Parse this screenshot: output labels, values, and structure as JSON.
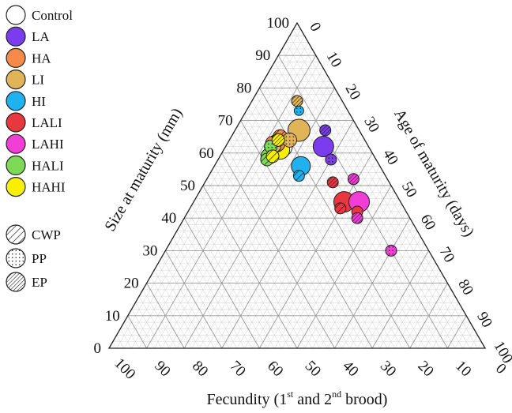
{
  "chart_data": {
    "type": "scatter",
    "subtype": "ternary",
    "axes": {
      "left": {
        "label": "Size at maturity (mm)",
        "ticks": [
          "0",
          "10",
          "20",
          "30",
          "40",
          "50",
          "60",
          "70",
          "80",
          "90",
          "100"
        ]
      },
      "right": {
        "label": "Age of maturity (days)",
        "ticks": [
          "0",
          "10",
          "20",
          "30",
          "40",
          "50",
          "60",
          "70",
          "80",
          "90",
          "100"
        ]
      },
      "bottom": {
        "label_main": "Fecundity (1",
        "label_sup1": "st",
        "label_mid": " and 2",
        "label_sup2": "nd",
        "label_end": " brood)",
        "ticks": [
          "100",
          "90",
          "80",
          "70",
          "60",
          "50",
          "40",
          "30",
          "20",
          "10",
          "0"
        ]
      },
      "range": [
        0,
        100
      ],
      "minor_step": 2
    },
    "grid": true,
    "legend": {
      "placement": "top-left",
      "treatments": [
        {
          "name": "Control",
          "color": "#ffffff"
        },
        {
          "name": "LA",
          "color": "#7b3cf0"
        },
        {
          "name": "HA",
          "color": "#f58a4a"
        },
        {
          "name": "LI",
          "color": "#e2b458"
        },
        {
          "name": "HI",
          "color": "#20b2f0"
        },
        {
          "name": "LALI",
          "color": "#e8383f"
        },
        {
          "name": "LAHI",
          "color": "#f03ed6"
        },
        {
          "name": "HALI",
          "color": "#7ed957"
        },
        {
          "name": "HAHI",
          "color": "#f8f000"
        }
      ],
      "patterns": [
        {
          "name": "CWP",
          "pattern": "wide"
        },
        {
          "name": "PP",
          "pattern": "dots"
        },
        {
          "name": "EP",
          "pattern": "narrow"
        }
      ]
    },
    "points": [
      {
        "treatment": "Control",
        "pattern": "solid",
        "size": 62,
        "age": 15,
        "fecundity": 23,
        "r": 13
      },
      {
        "treatment": "LA",
        "pattern": "solid",
        "size": 62,
        "age": 26,
        "fecundity": 12,
        "r": 13
      },
      {
        "treatment": "LA",
        "pattern": "narrow",
        "size": 67,
        "age": 24,
        "fecundity": 9,
        "r": 7
      },
      {
        "treatment": "LA",
        "pattern": "dots",
        "size": 58,
        "age": 30,
        "fecundity": 12,
        "r": 7
      },
      {
        "treatment": "HA",
        "pattern": "solid",
        "size": 63,
        "age": 13,
        "fecundity": 24,
        "r": 11
      },
      {
        "treatment": "HA",
        "pattern": "dots",
        "size": 63,
        "age": 12,
        "fecundity": 25,
        "r": 9
      },
      {
        "treatment": "HA",
        "pattern": "wide",
        "size": 65,
        "age": 13,
        "fecundity": 22,
        "r": 9
      },
      {
        "treatment": "LI",
        "pattern": "solid",
        "size": 67,
        "age": 17,
        "fecundity": 16,
        "r": 14
      },
      {
        "treatment": "LI",
        "pattern": "dots",
        "size": 64,
        "age": 16,
        "fecundity": 20,
        "r": 9
      },
      {
        "treatment": "LI",
        "pattern": "narrow",
        "size": 76,
        "age": 12,
        "fecundity": 12,
        "r": 7
      },
      {
        "treatment": "LI",
        "pattern": "wide",
        "size": 62,
        "age": 13,
        "fecundity": 25,
        "r": 8
      },
      {
        "treatment": "HI",
        "pattern": "solid",
        "size": 56,
        "age": 23,
        "fecundity": 21,
        "r": 12
      },
      {
        "treatment": "HI",
        "pattern": "dots",
        "size": 73,
        "age": 14,
        "fecundity": 13,
        "r": 6
      },
      {
        "treatment": "HI",
        "pattern": "wide",
        "size": 53,
        "age": 24,
        "fecundity": 23,
        "r": 7
      },
      {
        "treatment": "LALI",
        "pattern": "solid",
        "size": 45,
        "age": 40,
        "fecundity": 15,
        "r": 13
      },
      {
        "treatment": "LALI",
        "pattern": "narrow",
        "size": 51,
        "age": 34,
        "fecundity": 15,
        "r": 7
      },
      {
        "treatment": "LALI",
        "pattern": "wide",
        "size": 43,
        "age": 40,
        "fecundity": 17,
        "r": 7
      },
      {
        "treatment": "LALI",
        "pattern": "solid",
        "size": 42,
        "age": 45,
        "fecundity": 13,
        "r": 7
      },
      {
        "treatment": "LAHI",
        "pattern": "solid",
        "size": 45,
        "age": 44,
        "fecundity": 11,
        "r": 13
      },
      {
        "treatment": "LAHI",
        "pattern": "narrow",
        "size": 52,
        "age": 39,
        "fecundity": 9,
        "r": 7
      },
      {
        "treatment": "LAHI",
        "pattern": "narrow",
        "size": 40,
        "age": 46,
        "fecundity": 14,
        "r": 7
      },
      {
        "treatment": "LAHI",
        "pattern": "dots",
        "size": 30,
        "age": 60,
        "fecundity": 10,
        "r": 7
      },
      {
        "treatment": "HALI",
        "pattern": "solid",
        "size": 59,
        "age": 13,
        "fecundity": 28,
        "r": 10
      },
      {
        "treatment": "HALI",
        "pattern": "dots",
        "size": 62,
        "age": 12,
        "fecundity": 26,
        "r": 8
      },
      {
        "treatment": "HALI",
        "pattern": "wide",
        "size": 58,
        "age": 13,
        "fecundity": 29,
        "r": 8
      },
      {
        "treatment": "HAHI",
        "pattern": "solid",
        "size": 61,
        "age": 15,
        "fecundity": 24,
        "r": 12
      },
      {
        "treatment": "HAHI",
        "pattern": "wide",
        "size": 59,
        "age": 14,
        "fecundity": 27,
        "r": 8
      },
      {
        "treatment": "HAHI",
        "pattern": "narrow",
        "size": 64,
        "age": 13,
        "fecundity": 23,
        "r": 8
      }
    ]
  }
}
